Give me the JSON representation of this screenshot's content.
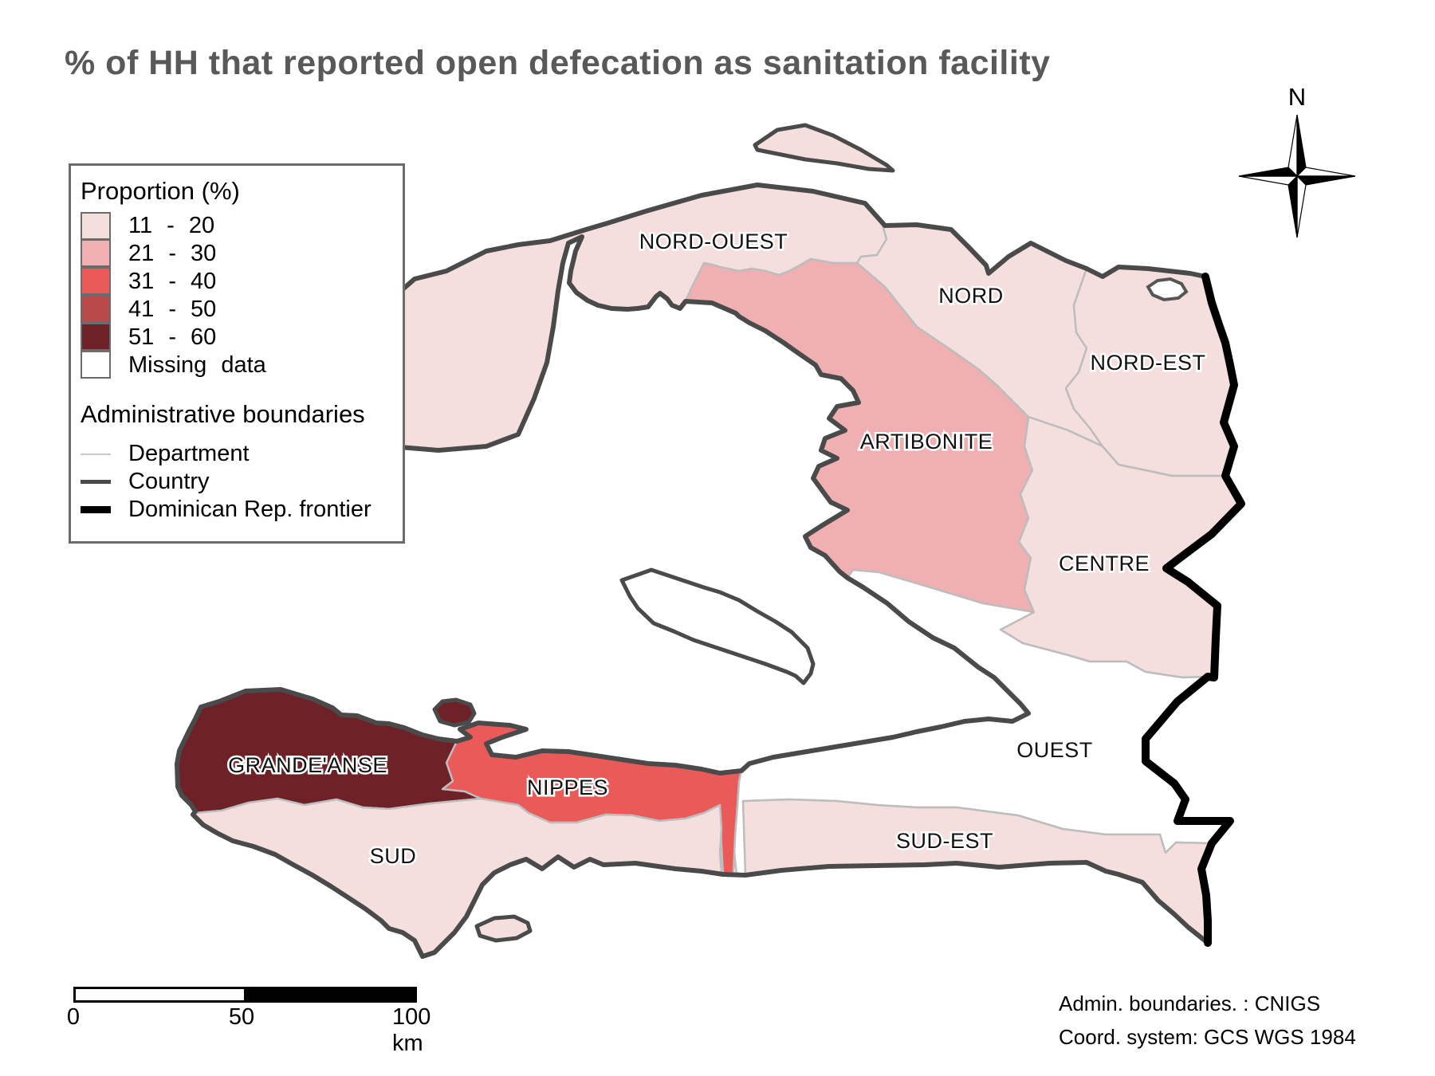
{
  "title": "% of HH that reported open defecation as sanitation facility",
  "palette": {
    "class_11_20": "#f4dfde",
    "class_21_30": "#f0b0b2",
    "class_31_40": "#ea5a58",
    "class_41_50": "#b94a4b",
    "class_51_60": "#6e2126",
    "missing": "#ffffff",
    "country_border": "#4a4a4a",
    "department_border": "#bdbdbd",
    "frontier": "#000000",
    "title_color": "#595959"
  },
  "legend": {
    "proportion_title": "Proportion (%)",
    "classes": [
      {
        "label": "11 - 20",
        "color": "#f4dfde"
      },
      {
        "label": "21 - 30",
        "color": "#f0b0b2"
      },
      {
        "label": "31 - 40",
        "color": "#ea5a58"
      },
      {
        "label": "41 - 50",
        "color": "#b94a4b"
      },
      {
        "label": "51 - 60",
        "color": "#6e2126"
      },
      {
        "label": "Missing data",
        "color": "#ffffff"
      }
    ],
    "boundaries_title": "Administrative boundaries",
    "boundary_items": [
      {
        "label": "Department",
        "type": "department"
      },
      {
        "label": "Country",
        "type": "country"
      },
      {
        "label": "Dominican Rep. frontier",
        "type": "frontier"
      }
    ]
  },
  "map": {
    "regions": [
      {
        "id": "nord-ouest",
        "label": "NORD-OUEST",
        "class": "11 - 20",
        "fill": "#f4dfde"
      },
      {
        "id": "nord",
        "label": "NORD",
        "class": "11 - 20",
        "fill": "#f4dfde"
      },
      {
        "id": "nord-est",
        "label": "NORD-EST",
        "class": "11 - 20",
        "fill": "#f4dfde"
      },
      {
        "id": "artibonite",
        "label": "ARTIBONITE",
        "class": "21 - 30",
        "fill": "#f0b0b2"
      },
      {
        "id": "centre",
        "label": "CENTRE",
        "class": "11 - 20",
        "fill": "#f4dfde"
      },
      {
        "id": "ouest",
        "label": "OUEST",
        "class": "Missing data",
        "fill": "#ffffff"
      },
      {
        "id": "sud-est",
        "label": "SUD-EST",
        "class": "11 - 20",
        "fill": "#f4dfde"
      },
      {
        "id": "nippes",
        "label": "NIPPES",
        "class": "31 - 40",
        "fill": "#ea5a58"
      },
      {
        "id": "grande-anse",
        "label": "GRANDE'ANSE",
        "class": "51 - 60",
        "fill": "#6e2126"
      },
      {
        "id": "sud",
        "label": "SUD",
        "class": "11 - 20",
        "fill": "#f4dfde"
      }
    ]
  },
  "compass": {
    "label": "N"
  },
  "scalebar": {
    "tick0": "0",
    "tick50": "50",
    "tick100": "100 km"
  },
  "attribution": {
    "line1": "Admin. boundaries. : CNIGS",
    "line2": "Coord. system: GCS WGS 1984"
  }
}
